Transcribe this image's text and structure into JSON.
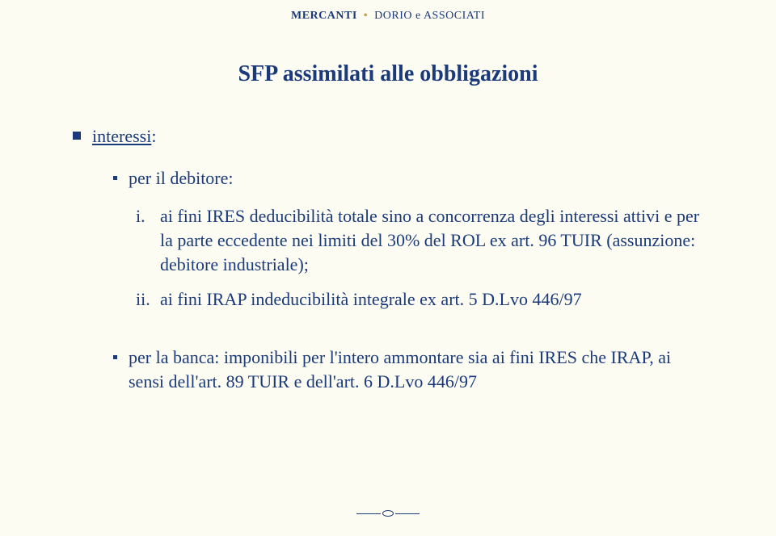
{
  "header": {
    "left": "MERCANTI",
    "right": "DORIO e ASSOCIATI"
  },
  "title": "SFP assimilati alle obbligazioni",
  "content": {
    "main_label": "interessi",
    "main_suffix": ":",
    "sub1": "per il debitore:",
    "roman": [
      {
        "marker": "i.",
        "text": "ai fini IRES deducibilità totale sino a concorrenza degli interessi attivi e per la parte eccedente nei limiti del 30% del ROL ex art. 96 TUIR (assunzione: debitore industriale);"
      },
      {
        "marker": "ii.",
        "text": "ai fini IRAP indeducibilità integrale ex art. 5 D.Lvo 446/97"
      }
    ],
    "sub2": "per la banca: imponibili per l'intero ammontare sia ai fini IRES che IRAP, ai sensi dell'art. 89 TUIR e dell'art. 6 D.Lvo 446/97"
  },
  "colors": {
    "background": "#fdfcf3",
    "text": "#1a3a7a",
    "accent_dot": "#c9a050"
  }
}
